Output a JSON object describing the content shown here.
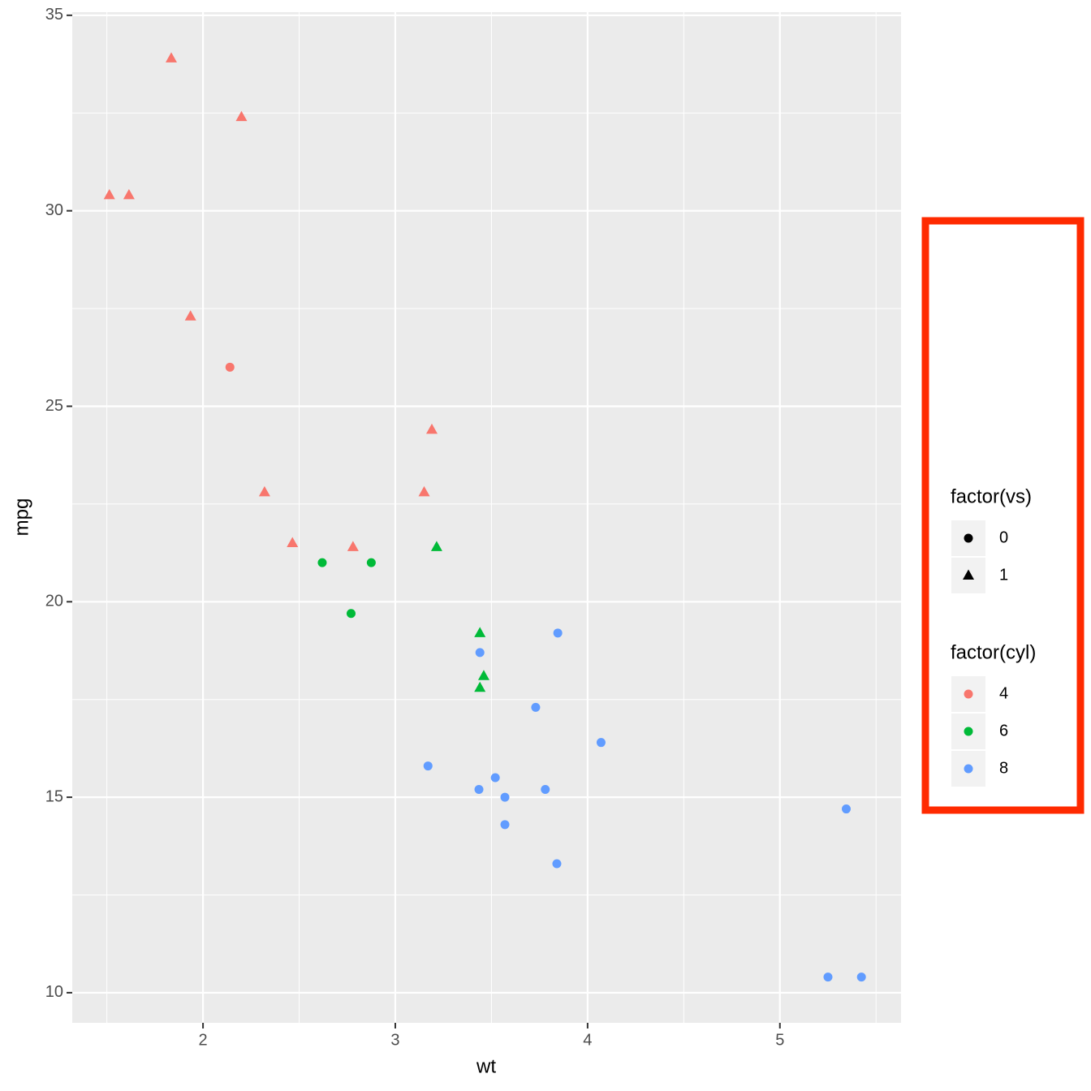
{
  "chart_data": {
    "type": "scatter",
    "x_label": "wt",
    "y_label": "mpg",
    "xlim": [
      1.32,
      5.63
    ],
    "ylim": [
      9.23,
      35.08
    ],
    "xticks": [
      2,
      3,
      4,
      5
    ],
    "yticks": [
      10,
      15,
      20,
      25,
      30,
      35
    ],
    "xminor": [
      1.5,
      2.5,
      3.5,
      4.5,
      5.5
    ],
    "yminor": [
      12.5,
      17.5,
      22.5,
      27.5,
      32.5
    ],
    "grid": true,
    "shape_legend": {
      "title": "factor(vs)",
      "labels": [
        "0",
        "1"
      ],
      "shapes": [
        "circle",
        "triangle"
      ]
    },
    "color_legend_title": "factor(cyl)",
    "series": [
      {
        "name": "4",
        "color": "#F8766D",
        "x": [
          2.32,
          3.19,
          3.15,
          2.2,
          1.615,
          1.835,
          2.465,
          1.935,
          2.14,
          1.513,
          2.78
        ],
        "values": [
          22.8,
          24.4,
          22.8,
          32.4,
          30.4,
          33.9,
          21.5,
          27.3,
          26.0,
          30.4,
          21.4
        ],
        "vs": [
          1,
          1,
          1,
          1,
          1,
          1,
          1,
          1,
          0,
          1,
          1
        ]
      },
      {
        "name": "6",
        "color": "#00BA38",
        "x": [
          2.62,
          2.875,
          3.215,
          3.46,
          3.44,
          3.44,
          2.77
        ],
        "values": [
          21.0,
          21.0,
          21.4,
          18.1,
          19.2,
          17.8,
          19.7
        ],
        "vs": [
          0,
          0,
          1,
          1,
          1,
          1,
          0
        ]
      },
      {
        "name": "8",
        "color": "#619CFF",
        "x": [
          3.44,
          3.57,
          4.07,
          3.73,
          3.78,
          5.25,
          5.424,
          5.345,
          3.52,
          3.435,
          3.84,
          3.845,
          3.17,
          3.57
        ],
        "values": [
          18.7,
          14.3,
          16.4,
          17.3,
          15.2,
          10.4,
          10.4,
          14.7,
          15.5,
          15.2,
          13.3,
          19.2,
          15.8,
          15.0
        ],
        "vs": [
          0,
          0,
          0,
          0,
          0,
          0,
          0,
          0,
          0,
          0,
          0,
          0,
          0,
          0
        ]
      }
    ]
  }
}
